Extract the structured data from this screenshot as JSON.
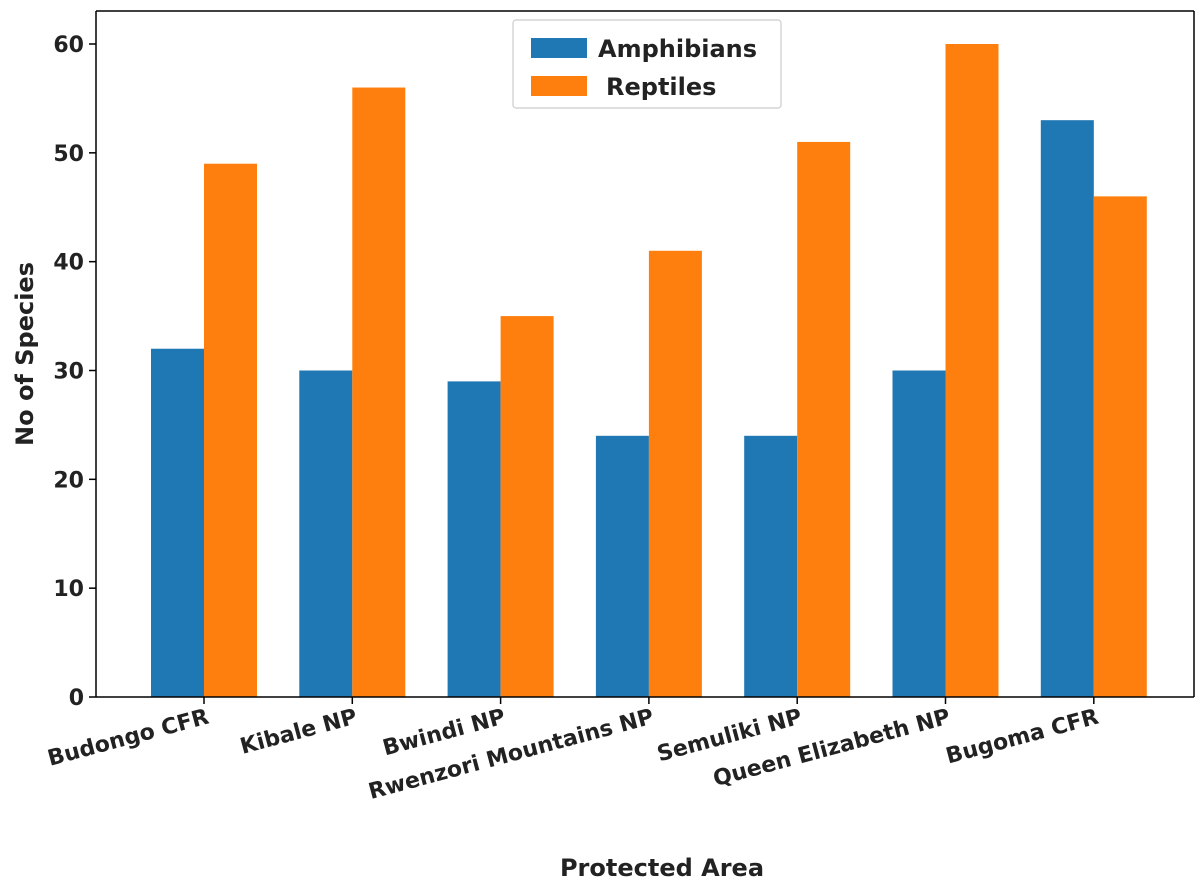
{
  "chart_data": {
    "type": "bar",
    "categories": [
      "Budongo CFR",
      "Kibale NP",
      "Bwindi NP",
      "Rwenzori Mountains NP",
      "Semuliki NP",
      "Queen Elizabeth NP",
      "Bugoma CFR"
    ],
    "series": [
      {
        "name": "Amphibians",
        "color": "#1f77b4",
        "values": [
          32,
          30,
          29,
          24,
          24,
          30,
          53
        ]
      },
      {
        "name": "Reptiles",
        "color": "#ff7f0e",
        "values": [
          49,
          56,
          35,
          41,
          51,
          60,
          46
        ]
      }
    ],
    "xlabel": "Protected Area",
    "ylabel": "No of Species",
    "ylim": [
      0,
      60
    ],
    "yticks": [
      0,
      10,
      20,
      30,
      40,
      50,
      60
    ],
    "grid": false,
    "legend_position": "top-center"
  }
}
